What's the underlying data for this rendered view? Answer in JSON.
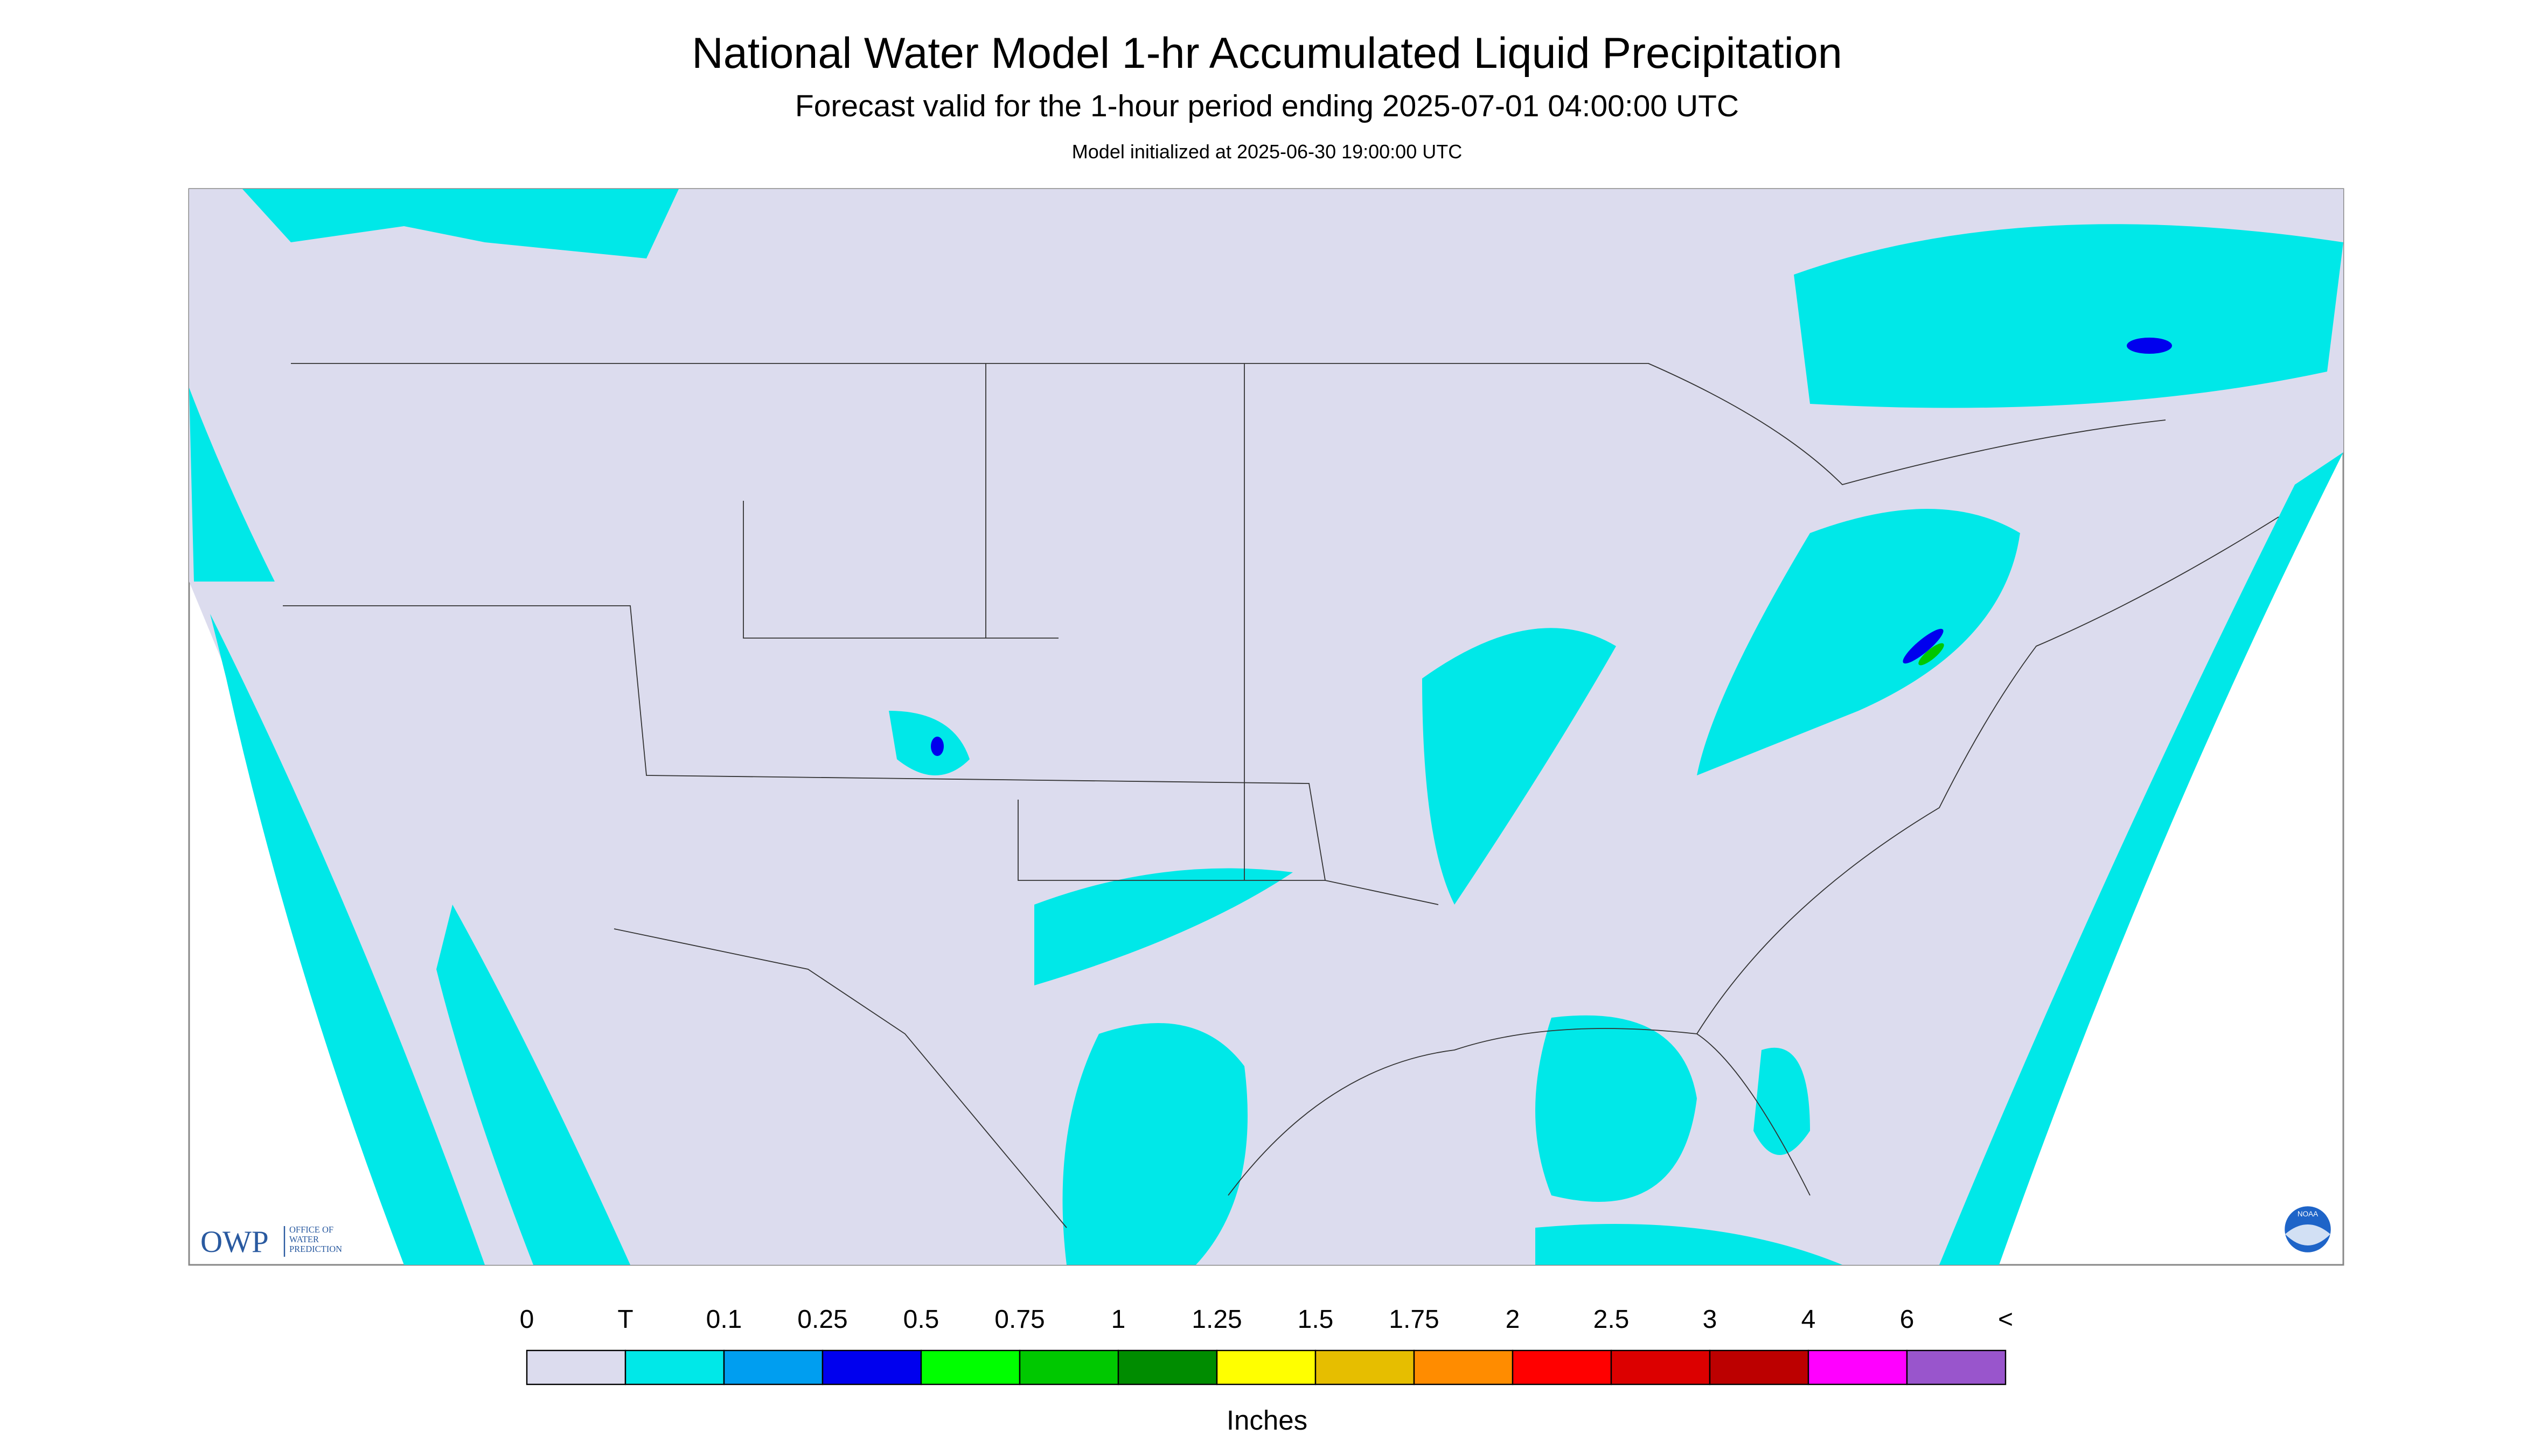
{
  "header": {
    "title": "National Water Model 1-hr Accumulated Liquid Precipitation",
    "subtitle": "Forecast valid for the 1-hour period ending 2025-07-01 04:00:00 UTC",
    "init": "Model initialized at 2025-06-30 19:00:00 UTC"
  },
  "logos": {
    "owp": "OWP",
    "owp_lines": [
      "OFFICE OF",
      "WATER",
      "PREDICTION"
    ],
    "noaa": "NOAA"
  },
  "legend": {
    "labels": [
      "0",
      "T",
      "0.1",
      "0.25",
      "0.5",
      "0.75",
      "1",
      "1.25",
      "1.5",
      "1.75",
      "2",
      "2.5",
      "3",
      "4",
      "6",
      "<"
    ],
    "colors": [
      "#dcdcee",
      "#00e8e8",
      "#009ef0",
      "#0000ee",
      "#00ff00",
      "#00c800",
      "#008c00",
      "#ffff00",
      "#e6be00",
      "#ff8c00",
      "#ff0000",
      "#dc0000",
      "#bc0000",
      "#ff00ff",
      "#9955cc"
    ],
    "unit": "Inches"
  }
}
